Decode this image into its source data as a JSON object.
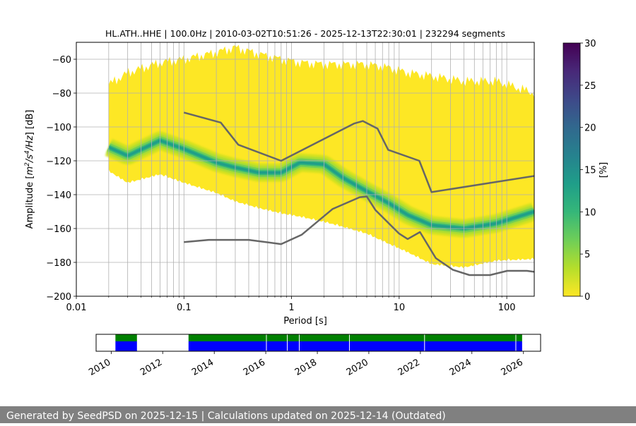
{
  "chart_data": {
    "type": "heatmap",
    "title": "HL.ATH..HHE | 100.0Hz | 2010-03-02T10:51:26 - 2025-12-13T22:30:01 | 232294 segments",
    "xlabel": "Period [s]",
    "ylabel_parts": [
      "Amplitude [",
      "m",
      "2",
      "/",
      "s",
      "4",
      "/",
      "Hz",
      "] [dB]"
    ],
    "x_scale": "log",
    "xlim": [
      0.01,
      180
    ],
    "ylim": [
      -200,
      -50
    ],
    "x_ticks": [
      {
        "v": 0.01,
        "label": "0.01"
      },
      {
        "v": 0.1,
        "label": "0.1"
      },
      {
        "v": 1,
        "label": "1"
      },
      {
        "v": 10,
        "label": "10"
      },
      {
        "v": 100,
        "label": "100"
      }
    ],
    "y_ticks": [
      {
        "v": -60,
        "label": "−60"
      },
      {
        "v": -80,
        "label": "−80"
      },
      {
        "v": -100,
        "label": "−100"
      },
      {
        "v": -120,
        "label": "−120"
      },
      {
        "v": -140,
        "label": "−140"
      },
      {
        "v": -160,
        "label": "−160"
      },
      {
        "v": -180,
        "label": "−180"
      },
      {
        "v": -200,
        "label": "−200"
      }
    ],
    "grid": true,
    "data_period_range": [
      0.02,
      180
    ],
    "psd_band": [
      {
        "p": 0.02,
        "lo": -125,
        "hi": -75,
        "mode": -112
      },
      {
        "p": 0.03,
        "lo": -132,
        "hi": -68,
        "mode": -117
      },
      {
        "p": 0.06,
        "lo": -127,
        "hi": -62,
        "mode": -108
      },
      {
        "p": 0.1,
        "lo": -132,
        "hi": -60,
        "mode": -113
      },
      {
        "p": 0.2,
        "lo": -138,
        "hi": -56,
        "mode": -121
      },
      {
        "p": 0.3,
        "lo": -143,
        "hi": -53,
        "mode": -124
      },
      {
        "p": 0.5,
        "lo": -147,
        "hi": -57,
        "mode": -127
      },
      {
        "p": 0.8,
        "lo": -150,
        "hi": -60,
        "mode": -127
      },
      {
        "p": 1.2,
        "lo": -152,
        "hi": -62,
        "mode": -121
      },
      {
        "p": 2,
        "lo": -155,
        "hi": -63,
        "mode": -122
      },
      {
        "p": 3,
        "lo": -158,
        "hi": -63,
        "mode": -130
      },
      {
        "p": 5,
        "lo": -162,
        "hi": -63,
        "mode": -138
      },
      {
        "p": 8,
        "lo": -168,
        "hi": -65,
        "mode": -145
      },
      {
        "p": 12,
        "lo": -173,
        "hi": -68,
        "mode": -152
      },
      {
        "p": 20,
        "lo": -180,
        "hi": -70,
        "mode": -158
      },
      {
        "p": 40,
        "lo": -182,
        "hi": -73,
        "mode": -160
      },
      {
        "p": 80,
        "lo": -178,
        "hi": -73,
        "mode": -157
      },
      {
        "p": 180,
        "lo": -177,
        "hi": -80,
        "mode": -150
      }
    ],
    "reference_curves": [
      {
        "points": [
          [
            0.1,
            -91.5
          ],
          [
            0.22,
            -97.4
          ],
          [
            0.32,
            -110.5
          ],
          [
            0.8,
            -120
          ],
          [
            3.8,
            -98
          ],
          [
            4.6,
            -96.5
          ],
          [
            6.3,
            -101
          ],
          [
            7.9,
            -113.5
          ],
          [
            15.4,
            -120
          ],
          [
            20,
            -138.5
          ],
          [
            354,
            -126
          ]
        ]
      },
      {
        "points": [
          [
            0.1,
            -168.0
          ],
          [
            0.17,
            -166.7
          ],
          [
            0.4,
            -166.7
          ],
          [
            0.8,
            -169.2
          ],
          [
            1.24,
            -163.7
          ],
          [
            2.4,
            -148.5
          ],
          [
            4.3,
            -141.5
          ],
          [
            5.0,
            -141.1
          ],
          [
            6.0,
            -149.0
          ],
          [
            10,
            -163.0
          ],
          [
            12,
            -166.2
          ],
          [
            15.6,
            -162.1
          ],
          [
            21.9,
            -177.5
          ],
          [
            31.6,
            -184.4
          ],
          [
            45,
            -187.5
          ],
          [
            70,
            -187.5
          ],
          [
            101,
            -185
          ],
          [
            154,
            -185
          ],
          [
            180,
            -185.6
          ]
        ]
      }
    ],
    "colorbar": {
      "label": "[%]",
      "min": 0,
      "max": 30,
      "ticks": [
        {
          "v": 0,
          "label": "0"
        },
        {
          "v": 5,
          "label": "5"
        },
        {
          "v": 10,
          "label": "10"
        },
        {
          "v": 15,
          "label": "15"
        },
        {
          "v": 20,
          "label": "20"
        },
        {
          "v": 25,
          "label": "25"
        },
        {
          "v": 30,
          "label": "30"
        }
      ],
      "colormap": "viridis_r",
      "stops": [
        "#fde725",
        "#b5de2b",
        "#6ece58",
        "#35b779",
        "#1f9e89",
        "#26828e",
        "#31688e",
        "#3e4989",
        "#482878",
        "#440154"
      ]
    },
    "availability": {
      "time_range": [
        "2009-06-01",
        "2026-09-01"
      ],
      "x_ticks": [
        "2010",
        "2012",
        "2014",
        "2016",
        "2018",
        "2020",
        "2022",
        "2024",
        "2026"
      ],
      "data_color": "#0000ff",
      "processed_color": "#008000",
      "segments": [
        [
          "2010-03-02",
          "2011-01-01"
        ],
        [
          "2013-01-01",
          "2025-12-13"
        ]
      ],
      "gaps": [
        "2016-01-10",
        "2016-11-01",
        "2017-04-20",
        "2019-04-01",
        "2022-03-01",
        "2025-09-15"
      ]
    }
  },
  "footer": {
    "text": "Generated by SeedPSD on 2025-12-15 | Calculations updated on 2025-12-14 (Outdated)"
  }
}
